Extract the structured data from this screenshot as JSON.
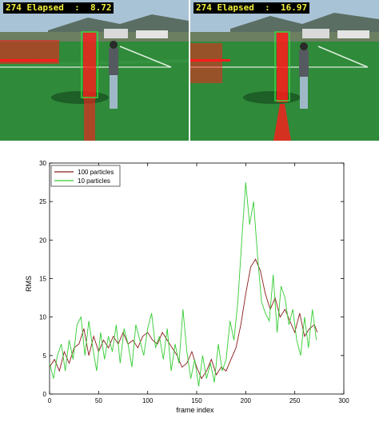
{
  "frames": [
    {
      "label": "274 Elapsed  :  8.72"
    },
    {
      "label": "274 Elapsed  :  16.97"
    }
  ],
  "colors": {
    "grass": "#2f8a3a",
    "sky": "#a9c3d6",
    "particles": "#ff1a1a",
    "track_box": "#3fd13f",
    "series_100": "#8b1a1a",
    "series_10": "#33cc33"
  },
  "chart_data": {
    "type": "line",
    "xlabel": "frame index",
    "ylabel": "RMS",
    "xlim": [
      0,
      300
    ],
    "ylim": [
      0,
      30
    ],
    "xticks": [
      0,
      50,
      100,
      150,
      200,
      250,
      300
    ],
    "yticks": [
      0,
      5,
      10,
      15,
      20,
      25,
      30
    ],
    "grid": false,
    "legend_position": "top-left",
    "series": [
      {
        "name": "100 particles",
        "color": "#8b1a1a",
        "x": [
          0,
          5,
          10,
          15,
          20,
          25,
          30,
          35,
          40,
          45,
          50,
          55,
          60,
          65,
          70,
          75,
          80,
          85,
          90,
          95,
          100,
          105,
          110,
          115,
          120,
          125,
          130,
          135,
          140,
          145,
          150,
          155,
          160,
          165,
          170,
          175,
          180,
          185,
          190,
          195,
          200,
          205,
          210,
          215,
          220,
          225,
          230,
          235,
          240,
          245,
          250,
          255,
          260,
          265,
          270,
          273
        ],
        "values": [
          3.5,
          4.5,
          3.0,
          5.5,
          4.0,
          6.0,
          6.5,
          8.5,
          5.0,
          7.5,
          5.5,
          7.0,
          6.0,
          7.5,
          6.5,
          8.0,
          6.5,
          7.0,
          6.0,
          7.5,
          8.0,
          7.0,
          6.5,
          8.0,
          7.0,
          6.0,
          5.0,
          3.5,
          4.0,
          5.5,
          3.5,
          2.0,
          3.0,
          4.5,
          2.5,
          3.5,
          3.0,
          4.5,
          6.0,
          9.0,
          13.0,
          16.5,
          17.5,
          16.0,
          13.0,
          11.0,
          12.5,
          10.0,
          11.0,
          9.5,
          8.0,
          10.5,
          7.5,
          8.5,
          9.0,
          8.0
        ]
      },
      {
        "name": "10 particles",
        "color": "#33cc33",
        "x": [
          0,
          4,
          8,
          12,
          16,
          20,
          24,
          28,
          32,
          36,
          40,
          44,
          48,
          52,
          56,
          60,
          64,
          68,
          72,
          76,
          80,
          84,
          88,
          92,
          96,
          100,
          104,
          108,
          112,
          116,
          120,
          124,
          128,
          132,
          136,
          140,
          144,
          148,
          152,
          156,
          160,
          164,
          168,
          172,
          176,
          180,
          184,
          188,
          192,
          196,
          200,
          204,
          208,
          212,
          216,
          220,
          224,
          228,
          232,
          236,
          240,
          244,
          248,
          252,
          256,
          260,
          264,
          268,
          272
        ],
        "values": [
          4.0,
          2.0,
          5.0,
          6.5,
          3.0,
          7.0,
          4.5,
          9.0,
          10.0,
          5.0,
          9.5,
          6.0,
          3.0,
          8.0,
          4.5,
          7.5,
          5.5,
          9.0,
          4.0,
          8.5,
          6.5,
          3.5,
          9.0,
          7.0,
          5.0,
          8.5,
          10.5,
          6.0,
          7.5,
          4.5,
          8.5,
          3.0,
          6.5,
          4.0,
          11.0,
          5.5,
          2.0,
          4.5,
          1.0,
          5.0,
          2.0,
          4.0,
          1.5,
          6.5,
          3.0,
          4.5,
          9.5,
          7.0,
          12.0,
          20.0,
          27.5,
          22.0,
          25.0,
          18.0,
          12.0,
          10.5,
          9.5,
          15.5,
          8.0,
          14.0,
          12.5,
          9.0,
          11.0,
          7.0,
          5.0,
          10.0,
          6.0,
          11.0,
          7.0
        ]
      }
    ]
  }
}
